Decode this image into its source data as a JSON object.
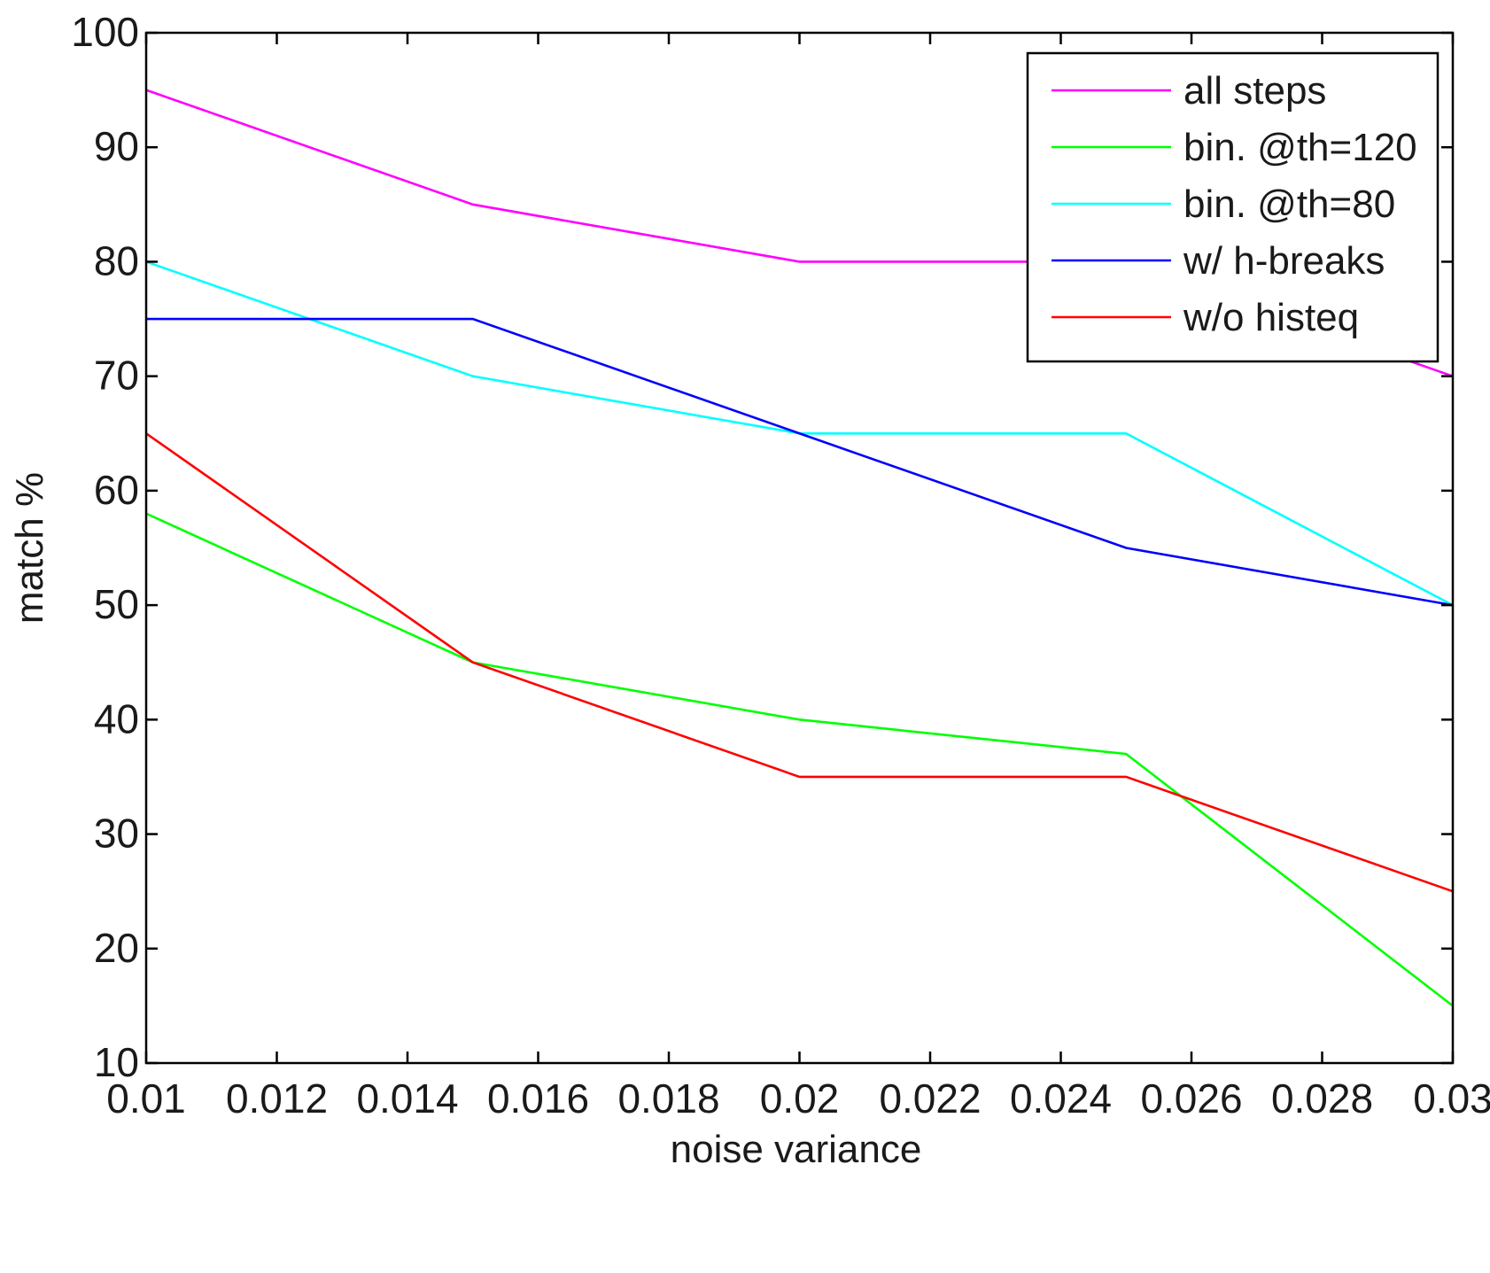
{
  "chart_data": {
    "type": "line",
    "xlabel": "noise variance",
    "ylabel": "match %",
    "xlim": [
      0.01,
      0.03
    ],
    "ylim": [
      10,
      100
    ],
    "x_ticks": [
      "0.01",
      "0.012",
      "0.014",
      "0.016",
      "0.018",
      "0.02",
      "0.022",
      "0.024",
      "0.026",
      "0.028",
      "0.03"
    ],
    "y_ticks": [
      "10",
      "20",
      "30",
      "40",
      "50",
      "60",
      "70",
      "80",
      "90",
      "100"
    ],
    "grid": false,
    "legend_position": "top-right",
    "x": [
      0.01,
      0.015,
      0.02,
      0.025,
      0.03
    ],
    "series": [
      {
        "name": "all steps",
        "color": "#ff00ff",
        "values": [
          95,
          85,
          80,
          80,
          70
        ]
      },
      {
        "name": "bin. @th=120",
        "color": "#00ff00",
        "values": [
          58,
          45,
          40,
          37,
          15
        ]
      },
      {
        "name": "bin. @th=80",
        "color": "#00ffff",
        "values": [
          80,
          70,
          65,
          65,
          50
        ]
      },
      {
        "name": "w/ h-breaks",
        "color": "#0000ff",
        "values": [
          75,
          75,
          65,
          55,
          50
        ]
      },
      {
        "name": "w/o histeq",
        "color": "#ff0000",
        "values": [
          65,
          45,
          35,
          35,
          25
        ]
      }
    ]
  }
}
